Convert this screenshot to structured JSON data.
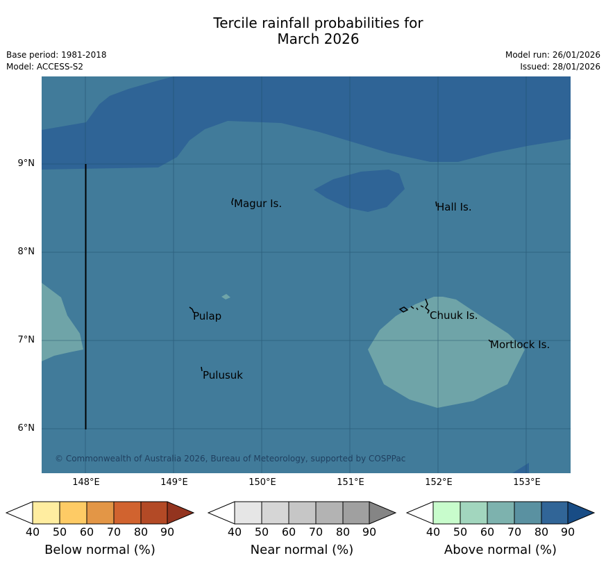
{
  "title_line1": "Tercile rainfall probabilities for",
  "title_line2": "March 2026",
  "meta": {
    "base_period": "Base period: 1981-2018",
    "model": "Model: ACCESS-S2",
    "model_run": "Model run: 26/01/2026",
    "issued": "Issued: 28/01/2026"
  },
  "map": {
    "lat_labels": [
      "9°N",
      "8°N",
      "7°N",
      "6°N"
    ],
    "lon_labels": [
      "148°E",
      "149°E",
      "150°E",
      "151°E",
      "152°E",
      "153°E"
    ],
    "places": [
      "Magur Is.",
      "Hall Is.",
      "Pulap",
      "Chuuk Is.",
      "Mortlock Is.",
      "Pulusuk"
    ],
    "copyright": "© Commonwealth of Australia 2026, Bureau of Meteorology, supported by COSPPac",
    "colors": {
      "above_70": "#417b9a",
      "above_80": "#2f6496",
      "above_60": "#6fa4a8"
    }
  },
  "colorbars": [
    {
      "label": "Below normal (%)",
      "ticks": [
        "40",
        "50",
        "60",
        "70",
        "80",
        "90"
      ],
      "colors": [
        "#ffeda0",
        "#fecb65",
        "#e39646",
        "#d1632f",
        "#b34a26",
        "#93341f"
      ]
    },
    {
      "label": "Near normal (%)",
      "ticks": [
        "40",
        "50",
        "60",
        "70",
        "80",
        "90"
      ],
      "colors": [
        "#e6e6e6",
        "#d6d6d6",
        "#c6c6c6",
        "#b3b3b3",
        "#a0a0a0",
        "#858585"
      ]
    },
    {
      "label": "Above normal (%)",
      "ticks": [
        "40",
        "50",
        "60",
        "70",
        "80",
        "90"
      ],
      "colors": [
        "#c8fccc",
        "#a2d6be",
        "#7db2ae",
        "#5a91a1",
        "#316597",
        "#184c85"
      ]
    }
  ]
}
